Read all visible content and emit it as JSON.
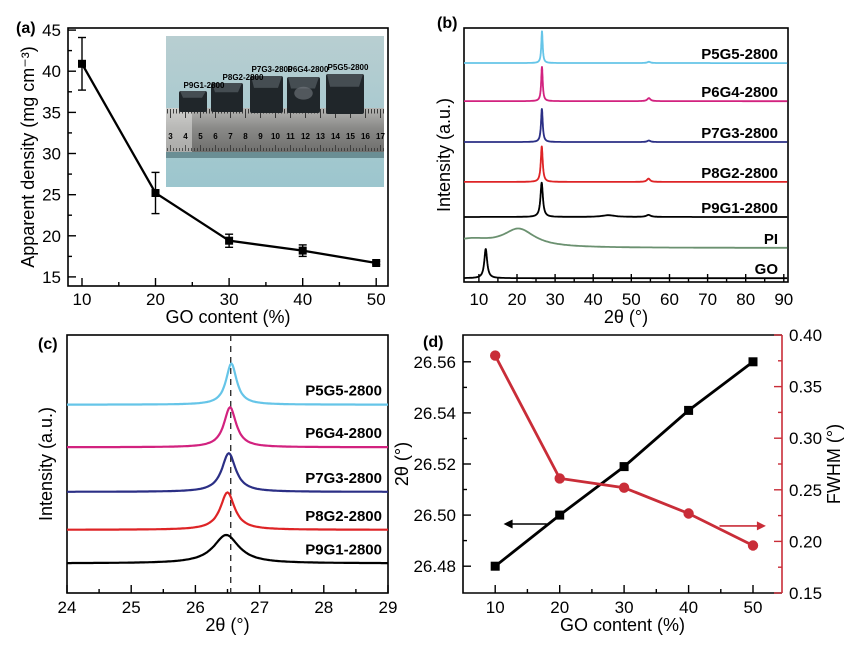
{
  "figure": {
    "background": "#ffffff",
    "description": "Four-panel materials characterization figure for PI/GO derived graphene aerogels"
  },
  "chart_data": [
    {
      "id": "a",
      "panel_label": "(a)",
      "type": "line",
      "xlabel": "GO content (%)",
      "ylabel": "Apparent density (mg cm⁻³)",
      "x": [
        10,
        20,
        30,
        40,
        50
      ],
      "values": [
        40.9,
        25.2,
        19.4,
        18.2,
        16.7
      ],
      "errors": [
        3.2,
        2.5,
        0.8,
        0.7,
        0.2
      ],
      "xlim": [
        8.1,
        51.6
      ],
      "ylim": [
        13.9,
        45.25
      ],
      "xticks": [
        10,
        20,
        30,
        40,
        50
      ],
      "yticks": [
        15,
        20,
        25,
        30,
        35,
        40,
        45
      ],
      "marker": "square",
      "color": "#000000",
      "grid": false,
      "inset_photo": {
        "background": "#a9cdd3",
        "description": "photo of five aerogel cubes of increasing size on a metal centimeter ruler",
        "sample_labels": [
          "P9G1-2800",
          "P8G2-2800",
          "P7G3-2800",
          "P6G4-2800",
          "P5G5-2800"
        ],
        "ruler_numbers": [
          "3",
          "4",
          "5",
          "6",
          "7",
          "8",
          "9",
          "10",
          "11",
          "12",
          "13",
          "14",
          "15",
          "16",
          "17"
        ]
      }
    },
    {
      "id": "b",
      "panel_label": "(b)",
      "type": "line",
      "xlabel": "2θ (°)",
      "ylabel": "Intensity (a.u.)",
      "xlim": [
        6.1,
        91.1
      ],
      "xticks": [
        10,
        20,
        30,
        40,
        50,
        60,
        70,
        80,
        90
      ],
      "grid": false,
      "series": [
        {
          "name": "P5G5-2800",
          "color": "#66c5e8",
          "baseline": 0.862,
          "peaks": [
            {
              "center": 26.56,
              "height": 0.125,
              "hwhm": 0.22
            },
            {
              "center": 54.6,
              "height": 0.005,
              "hwhm": 0.5
            }
          ]
        },
        {
          "name": "P6G4-2800",
          "color": "#d2227f",
          "baseline": 0.712,
          "peaks": [
            {
              "center": 26.55,
              "height": 0.135,
              "hwhm": 0.24
            },
            {
              "center": 54.6,
              "height": 0.012,
              "hwhm": 0.5
            }
          ]
        },
        {
          "name": "P7G3-2800",
          "color": "#2b2f85",
          "baseline": 0.551,
          "peaks": [
            {
              "center": 26.53,
              "height": 0.13,
              "hwhm": 0.27
            },
            {
              "center": 54.6,
              "height": 0.006,
              "hwhm": 0.5
            }
          ]
        },
        {
          "name": "P8G2-2800",
          "color": "#de2426",
          "baseline": 0.394,
          "peaks": [
            {
              "center": 26.5,
              "height": 0.14,
              "hwhm": 0.3
            },
            {
              "center": 54.5,
              "height": 0.013,
              "hwhm": 0.5
            }
          ]
        },
        {
          "name": "P9G1-2800",
          "color": "#000000",
          "baseline": 0.256,
          "peaks": [
            {
              "center": 26.48,
              "height": 0.135,
              "hwhm": 0.38
            },
            {
              "center": 44.0,
              "height": 0.007,
              "hwhm": 2.0
            },
            {
              "center": 54.5,
              "height": 0.008,
              "hwhm": 0.7
            }
          ]
        },
        {
          "name": "PI",
          "color": "#6b9170",
          "baseline": 0.134,
          "peaks": [
            {
              "center": 20.5,
              "height": 0.07,
              "hwhm": 5.0
            },
            {
              "center": 7.5,
              "height": 0.03,
              "hwhm": 7.0
            }
          ]
        },
        {
          "name": "GO",
          "color": "#000000",
          "baseline": 0.015,
          "peaks": [
            {
              "center": 11.8,
              "height": 0.115,
              "hwhm": 0.45
            }
          ]
        }
      ]
    },
    {
      "id": "c",
      "panel_label": "(c)",
      "type": "line",
      "xlabel": "2θ (°)",
      "ylabel": "Intensity (a.u.)",
      "xlim": [
        24,
        29
      ],
      "xticks": [
        24,
        25,
        26,
        27,
        28,
        29
      ],
      "dashed_guide_x": 26.55,
      "grid": false,
      "series": [
        {
          "name": "P5G5-2800",
          "color": "#66c5e8",
          "baseline": 0.73,
          "peaks": [
            {
              "center": 26.56,
              "height": 0.16,
              "hwhm": 0.1
            }
          ]
        },
        {
          "name": "P6G4-2800",
          "color": "#d2227f",
          "baseline": 0.565,
          "peaks": [
            {
              "center": 26.54,
              "height": 0.155,
              "hwhm": 0.115
            }
          ]
        },
        {
          "name": "P7G3-2800",
          "color": "#2b2f85",
          "baseline": 0.392,
          "peaks": [
            {
              "center": 26.52,
              "height": 0.15,
              "hwhm": 0.13
            }
          ]
        },
        {
          "name": "P8G2-2800",
          "color": "#de2426",
          "baseline": 0.245,
          "peaks": [
            {
              "center": 26.5,
              "height": 0.145,
              "hwhm": 0.135
            }
          ]
        },
        {
          "name": "P9G1-2800",
          "color": "#000000",
          "baseline": 0.115,
          "peaks": [
            {
              "center": 26.48,
              "height": 0.11,
              "hwhm": 0.24
            }
          ]
        }
      ]
    },
    {
      "id": "d",
      "panel_label": "(d)",
      "type": "line",
      "xlabel": "GO content (%)",
      "ylabel_left": "2θ (°)",
      "ylabel_right": "FWHM (°)",
      "x": [
        10,
        20,
        30,
        40,
        50
      ],
      "series": [
        {
          "name": "2θ",
          "axis": "left",
          "marker": "square",
          "color": "#000000",
          "values": [
            26.48,
            26.5,
            26.519,
            26.541,
            26.56
          ]
        },
        {
          "name": "FWHM",
          "axis": "right",
          "marker": "circle",
          "color": "#c92d38",
          "values": [
            0.38,
            0.261,
            0.252,
            0.227,
            0.196
          ]
        }
      ],
      "xlim": [
        5,
        54.5
      ],
      "ylim_left": [
        26.4695,
        26.5705
      ],
      "ylim_right": [
        0.15,
        0.4
      ],
      "xticks": [
        10,
        20,
        30,
        40,
        50
      ],
      "yticks_left": [
        26.48,
        26.5,
        26.52,
        26.54,
        26.56
      ],
      "yticks_right": [
        0.15,
        0.2,
        0.25,
        0.3,
        0.35,
        0.4
      ],
      "right_axis_color": "#c92d38",
      "grid": false,
      "arrows": [
        {
          "axis": "left",
          "color": "#000000",
          "y": 26.4965,
          "x_from": 18.0,
          "x_to": 11.3,
          "direction": "left"
        },
        {
          "axis": "right",
          "color": "#c92d38",
          "y": 0.215,
          "x_from": 44.8,
          "x_to": 52.0,
          "direction": "right"
        }
      ]
    }
  ]
}
